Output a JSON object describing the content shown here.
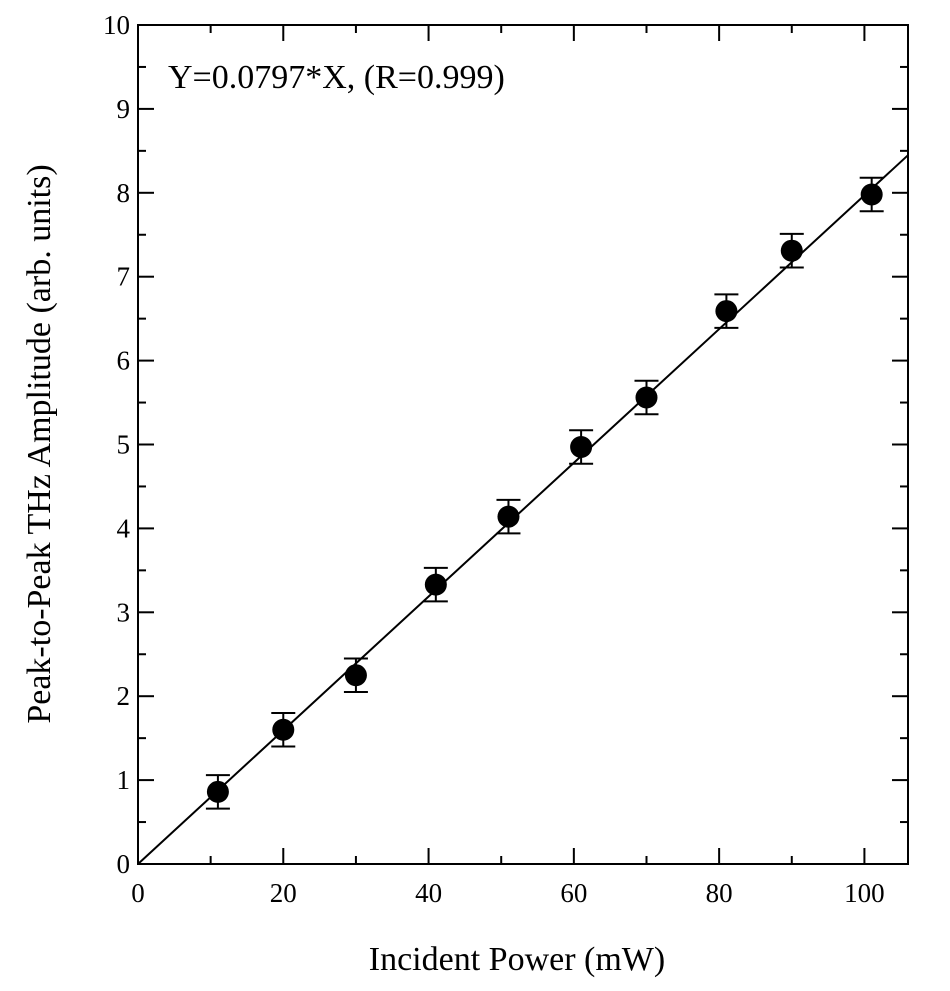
{
  "chart_data": {
    "type": "scatter",
    "xlabel": "Incident Power (mW)",
    "ylabel": "Peak-to-Peak THz Amplitude (arb. units)",
    "annotation": "Y=0.0797*X,  (R=0.999)",
    "xlim": [
      0,
      106
    ],
    "ylim": [
      0,
      10
    ],
    "x_ticks": [
      0,
      20,
      40,
      60,
      80,
      100
    ],
    "y_ticks": [
      0,
      1,
      2,
      3,
      4,
      5,
      6,
      7,
      8,
      9,
      10
    ],
    "grid": false,
    "points": [
      {
        "x": 11,
        "y": 0.86,
        "err": 0.2
      },
      {
        "x": 20,
        "y": 1.6,
        "err": 0.2
      },
      {
        "x": 30,
        "y": 2.25,
        "err": 0.2
      },
      {
        "x": 41,
        "y": 3.33,
        "err": 0.2
      },
      {
        "x": 51,
        "y": 4.14,
        "err": 0.2
      },
      {
        "x": 61,
        "y": 4.97,
        "err": 0.2
      },
      {
        "x": 70,
        "y": 5.56,
        "err": 0.2
      },
      {
        "x": 81,
        "y": 6.59,
        "err": 0.2
      },
      {
        "x": 90,
        "y": 7.31,
        "err": 0.2
      },
      {
        "x": 101,
        "y": 7.98,
        "err": 0.2
      }
    ],
    "fit": {
      "slope": 0.0797,
      "x_range": [
        0,
        106
      ]
    }
  }
}
